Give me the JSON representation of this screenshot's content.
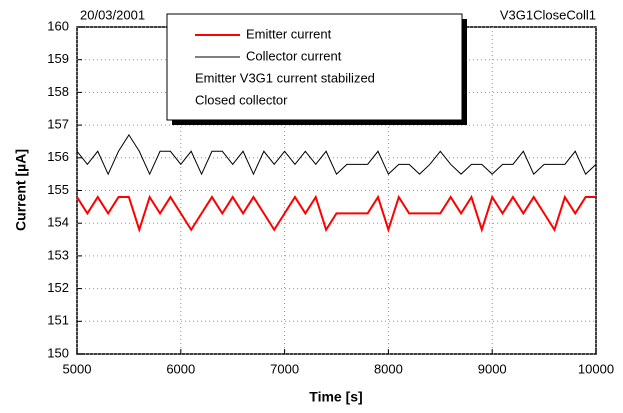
{
  "chart_data": {
    "type": "line",
    "annotations": {
      "left": "20/03/2001",
      "right": "V3G1CloseColl1"
    },
    "xlabel": "Time [s]",
    "ylabel": "Current [µA]",
    "x": [
      5000,
      5100,
      5200,
      5300,
      5400,
      5500,
      5600,
      5700,
      5800,
      5900,
      6000,
      6100,
      6200,
      6300,
      6400,
      6500,
      6600,
      6700,
      6800,
      6900,
      7000,
      7100,
      7200,
      7300,
      7400,
      7500,
      7600,
      7700,
      7800,
      7900,
      8000,
      8100,
      8200,
      8300,
      8400,
      8500,
      8600,
      8700,
      8800,
      8900,
      9000,
      9100,
      9200,
      9300,
      9400,
      9500,
      9600,
      9700,
      9800,
      9900,
      10000
    ],
    "series": [
      {
        "name": "Emitter current",
        "color": "#ff0000",
        "values": [
          154.8,
          154.3,
          154.8,
          154.3,
          154.8,
          154.8,
          153.8,
          154.8,
          154.3,
          154.8,
          154.3,
          153.8,
          154.3,
          154.8,
          154.3,
          154.8,
          154.3,
          154.8,
          154.3,
          153.8,
          154.3,
          154.8,
          154.3,
          154.8,
          153.8,
          154.3,
          154.3,
          154.3,
          154.3,
          154.8,
          153.8,
          154.8,
          154.3,
          154.3,
          154.3,
          154.3,
          154.8,
          154.3,
          154.8,
          153.8,
          154.8,
          154.3,
          154.8,
          154.3,
          154.8,
          154.3,
          153.8,
          154.8,
          154.3,
          154.8,
          154.8
        ]
      },
      {
        "name": "Collector current",
        "color": "#000000",
        "values": [
          156.2,
          155.8,
          156.2,
          155.5,
          156.2,
          156.7,
          156.2,
          155.5,
          156.2,
          156.2,
          155.8,
          156.2,
          155.5,
          156.2,
          156.2,
          155.8,
          156.2,
          155.5,
          156.2,
          155.8,
          156.2,
          155.8,
          156.2,
          155.8,
          156.2,
          155.5,
          155.8,
          155.8,
          155.8,
          156.2,
          155.5,
          155.8,
          155.8,
          155.5,
          155.8,
          156.2,
          155.8,
          155.5,
          155.8,
          155.8,
          155.5,
          155.8,
          155.8,
          156.2,
          155.5,
          155.8,
          155.8,
          155.8,
          156.2,
          155.5,
          155.8
        ]
      }
    ],
    "legend_notes": [
      "Emitter V3G1 current stabilized",
      "Closed collector"
    ],
    "xlim": [
      5000,
      10000
    ],
    "xticks": [
      5000,
      6000,
      7000,
      8000,
      9000,
      10000
    ],
    "ylim": [
      150,
      160
    ],
    "yticks": [
      150,
      151,
      152,
      153,
      154,
      155,
      156,
      157,
      158,
      159,
      160
    ],
    "grid": true
  }
}
